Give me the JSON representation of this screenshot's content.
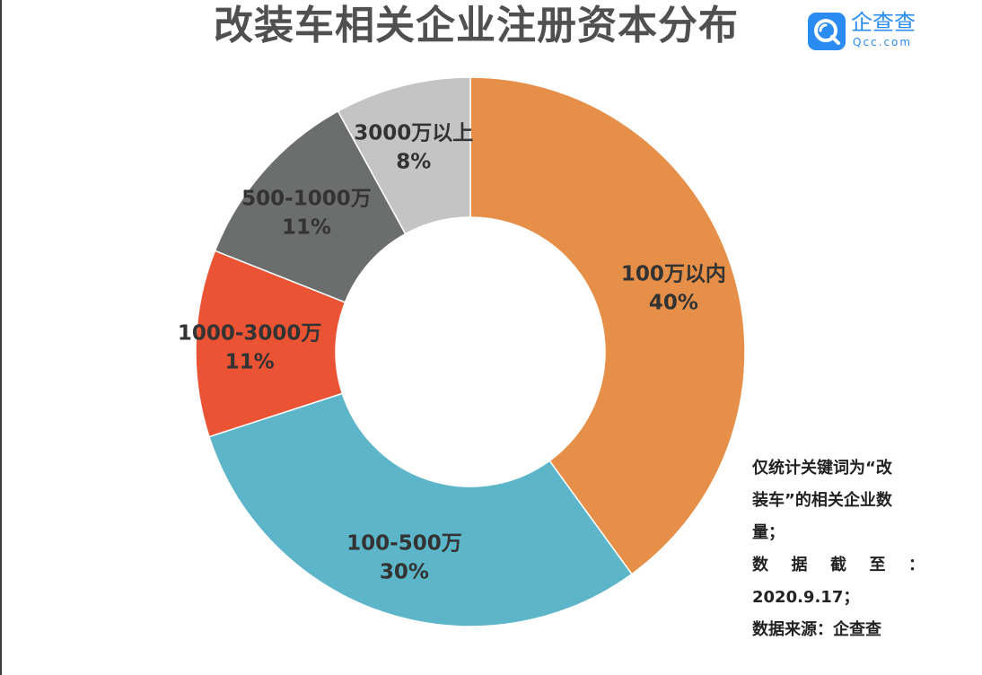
{
  "title": "改装车相关企业注册资本分布",
  "logo": {
    "name": "企查查",
    "domain": "Qcc.com",
    "brand_color": "#2a8cf0"
  },
  "chart_data": {
    "type": "pie",
    "variant": "donut",
    "title": "改装车相关企业注册资本分布",
    "slices": [
      {
        "category": "100万以内",
        "value": 40,
        "label": "40%",
        "color": "#e58f48"
      },
      {
        "category": "100-500万",
        "value": 30,
        "label": "30%",
        "color": "#5cb5c8"
      },
      {
        "category": "1000-3000万",
        "value": 11,
        "label": "11%",
        "color": "#ea5434"
      },
      {
        "category": "500-1000万",
        "value": 11,
        "label": "11%",
        "color": "#6c6e6d"
      },
      {
        "category": "3000万以上",
        "value": 8,
        "label": "8%",
        "color": "#c4c4c4"
      }
    ]
  },
  "notes": {
    "line1": "仅统计关键词为“改",
    "line2": "装车”的相关企业数",
    "line3": "量；",
    "line4_chars": [
      "数",
      "据",
      "截",
      "至",
      "："
    ],
    "line5": "2020.9.17；",
    "line6": "数据来源：企查查"
  }
}
